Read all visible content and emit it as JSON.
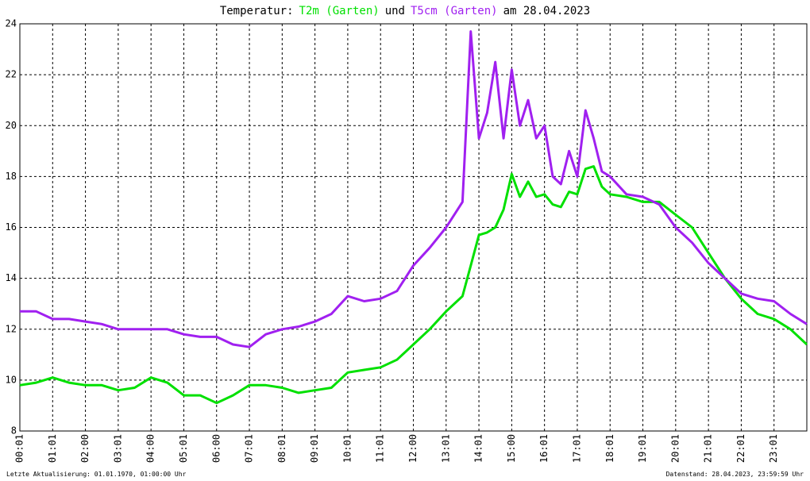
{
  "chart_data": {
    "type": "line",
    "title_prefix": "Temperatur:",
    "title_joiner": "und",
    "title_suffix": "am 28.04.2023",
    "footer_left": "Letzte Aktualisierung: 01.01.1970, 01:00:00 Uhr",
    "footer_right": "Datenstand: 28.04.2023, 23:59:59 Uhr",
    "x": [
      0,
      0.5,
      1,
      1.5,
      2,
      2.5,
      3,
      3.5,
      4,
      4.5,
      5,
      5.5,
      6,
      6.5,
      7,
      7.5,
      8,
      8.5,
      9,
      9.5,
      10,
      10.5,
      11,
      11.5,
      12,
      12.5,
      13,
      13.5,
      13.75,
      14,
      14.25,
      14.5,
      14.75,
      15,
      15.25,
      15.5,
      15.75,
      16,
      16.25,
      16.5,
      16.75,
      17,
      17.25,
      17.5,
      17.75,
      18,
      18.5,
      19,
      19.5,
      20,
      20.5,
      21,
      21.5,
      22,
      22.5,
      23,
      23.5,
      24
    ],
    "series": [
      {
        "name": "T2m (Garten)",
        "color": "#00e000",
        "values": [
          9.8,
          9.9,
          10.1,
          9.9,
          9.8,
          9.8,
          9.6,
          9.7,
          10.1,
          9.9,
          9.4,
          9.4,
          9.1,
          9.4,
          9.8,
          9.8,
          9.7,
          9.5,
          9.6,
          9.7,
          10.3,
          10.4,
          10.5,
          10.8,
          11.4,
          12.0,
          12.7,
          13.3,
          14.5,
          15.7,
          15.8,
          16.0,
          16.7,
          18.1,
          17.2,
          17.8,
          17.2,
          17.3,
          16.9,
          16.8,
          17.4,
          17.3,
          18.3,
          18.4,
          17.6,
          17.3,
          17.2,
          17.0,
          17.0,
          16.5,
          16.0,
          15.0,
          14.0,
          13.2,
          12.6,
          12.4,
          12.0,
          11.4
        ]
      },
      {
        "name": "T5cm (Garten)",
        "color": "#a020f0",
        "values": [
          12.7,
          12.7,
          12.4,
          12.4,
          12.3,
          12.2,
          12.0,
          12.0,
          12.0,
          12.0,
          11.8,
          11.7,
          11.7,
          11.4,
          11.3,
          11.8,
          12.0,
          12.1,
          12.3,
          12.6,
          13.3,
          13.1,
          13.2,
          13.5,
          14.5,
          15.2,
          16.0,
          17.0,
          23.7,
          19.5,
          20.5,
          22.5,
          19.5,
          22.2,
          20.0,
          21.0,
          19.5,
          20.0,
          18.0,
          17.7,
          19.0,
          18.0,
          20.6,
          19.5,
          18.2,
          18.0,
          17.3,
          17.2,
          16.9,
          16.0,
          15.4,
          14.6,
          14.0,
          13.4,
          13.2,
          13.1,
          12.6,
          12.2
        ]
      }
    ],
    "xlim": [
      0,
      24
    ],
    "xticks": [
      {
        "value": 0,
        "label": "00:01"
      },
      {
        "value": 1,
        "label": "01:01"
      },
      {
        "value": 2,
        "label": "02:00"
      },
      {
        "value": 3,
        "label": "03:01"
      },
      {
        "value": 4,
        "label": "04:00"
      },
      {
        "value": 5,
        "label": "05:01"
      },
      {
        "value": 6,
        "label": "06:00"
      },
      {
        "value": 7,
        "label": "07:01"
      },
      {
        "value": 8,
        "label": "08:01"
      },
      {
        "value": 9,
        "label": "09:01"
      },
      {
        "value": 10,
        "label": "10:01"
      },
      {
        "value": 11,
        "label": "11:01"
      },
      {
        "value": 12,
        "label": "12:00"
      },
      {
        "value": 13,
        "label": "13:01"
      },
      {
        "value": 14,
        "label": "14:01"
      },
      {
        "value": 15,
        "label": "15:00"
      },
      {
        "value": 16,
        "label": "16:01"
      },
      {
        "value": 17,
        "label": "17:01"
      },
      {
        "value": 18,
        "label": "18:01"
      },
      {
        "value": 19,
        "label": "19:01"
      },
      {
        "value": 20,
        "label": "20:01"
      },
      {
        "value": 21,
        "label": "21:01"
      },
      {
        "value": 22,
        "label": "22:01"
      },
      {
        "value": 23,
        "label": "23:01"
      }
    ],
    "ylim": [
      8,
      24
    ],
    "yticks": [
      8,
      10,
      12,
      14,
      16,
      18,
      20,
      22,
      24
    ],
    "grid": true
  }
}
